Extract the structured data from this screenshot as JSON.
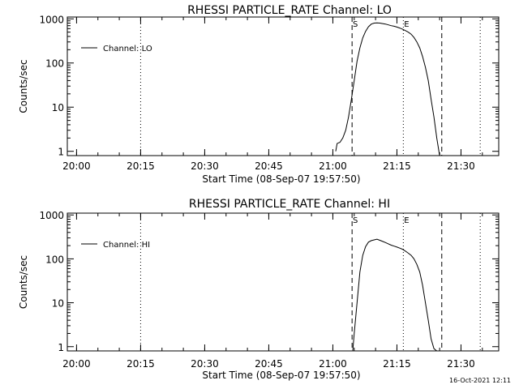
{
  "footer": {
    "timestamp": "16-Oct-2021 12:11"
  },
  "chart_data": [
    {
      "type": "line",
      "title": "RHESSI PARTICLE_RATE Channel: LO",
      "xlabel": "Start Time (08-Sep-07 19:57:50)",
      "ylabel": "Counts/sec",
      "yscale": "log",
      "ylim": [
        0.8,
        1100
      ],
      "xlim": [
        "19:57:50",
        "21:38:50"
      ],
      "x_ticks": [
        "20:00",
        "20:15",
        "20:30",
        "20:45",
        "21:00",
        "21:15",
        "21:30"
      ],
      "y_ticks": [
        "1",
        "10",
        "100",
        "1000"
      ],
      "legend": {
        "position": "top-left",
        "entries": [
          "Channel: LO"
        ]
      },
      "markers": [
        {
          "label": "S",
          "time": "21:04:30",
          "style": "dashed"
        },
        {
          "label": "E",
          "time": "21:16:30",
          "style": "dotted"
        },
        {
          "label": "",
          "time": "21:25:30",
          "style": "dashed"
        },
        {
          "label": "",
          "time": "20:15:00",
          "style": "dotted"
        },
        {
          "label": "",
          "time": "21:34:30",
          "style": "dotted"
        }
      ],
      "series": [
        {
          "name": "Channel: LO",
          "x": [
            "21:00:40",
            "21:01:00",
            "21:01:40",
            "21:02:20",
            "21:03:00",
            "21:03:40",
            "21:04:20",
            "21:05:00",
            "21:05:40",
            "21:06:20",
            "21:07:00",
            "21:07:40",
            "21:08:20",
            "21:09:00",
            "21:09:40",
            "21:10:20",
            "21:11:00",
            "21:11:40",
            "21:12:20",
            "21:13:00",
            "21:13:40",
            "21:14:20",
            "21:15:00",
            "21:15:40",
            "21:16:20",
            "21:17:00",
            "21:17:40",
            "21:18:20",
            "21:19:00",
            "21:19:40",
            "21:20:20",
            "21:21:00",
            "21:21:40",
            "21:22:20",
            "21:23:00",
            "21:23:40",
            "21:24:20",
            "21:25:00"
          ],
          "y": [
            1,
            1.5,
            1.6,
            2,
            3,
            6,
            15,
            40,
            110,
            220,
            370,
            520,
            660,
            760,
            800,
            810,
            800,
            780,
            760,
            730,
            700,
            680,
            650,
            620,
            580,
            540,
            500,
            450,
            380,
            300,
            220,
            140,
            80,
            40,
            15,
            6,
            2,
            0.8
          ]
        }
      ]
    },
    {
      "type": "line",
      "title": "RHESSI PARTICLE_RATE Channel: HI",
      "xlabel": "Start Time (08-Sep-07 19:57:50)",
      "ylabel": "Counts/sec",
      "yscale": "log",
      "ylim": [
        0.8,
        1100
      ],
      "xlim": [
        "19:57:50",
        "21:38:50"
      ],
      "x_ticks": [
        "20:00",
        "20:15",
        "20:30",
        "20:45",
        "21:00",
        "21:15",
        "21:30"
      ],
      "y_ticks": [
        "1",
        "10",
        "100",
        "1000"
      ],
      "legend": {
        "position": "top-left",
        "entries": [
          "Channel: HI"
        ]
      },
      "markers": [
        {
          "label": "S",
          "time": "21:04:30",
          "style": "dashed"
        },
        {
          "label": "E",
          "time": "21:16:30",
          "style": "dotted"
        },
        {
          "label": "",
          "time": "21:25:30",
          "style": "dashed"
        },
        {
          "label": "",
          "time": "20:15:00",
          "style": "dotted"
        },
        {
          "label": "",
          "time": "21:34:30",
          "style": "dotted"
        }
      ],
      "series": [
        {
          "name": "Channel: HI",
          "x": [
            "21:04:40",
            "21:05:00",
            "21:05:40",
            "21:06:20",
            "21:07:00",
            "21:07:40",
            "21:08:20",
            "21:09:00",
            "21:09:40",
            "21:10:20",
            "21:11:00",
            "21:11:40",
            "21:12:20",
            "21:13:00",
            "21:13:40",
            "21:14:20",
            "21:15:00",
            "21:15:40",
            "21:16:20",
            "21:17:00",
            "21:17:40",
            "21:18:20",
            "21:19:00",
            "21:19:40",
            "21:20:20",
            "21:21:00",
            "21:21:40",
            "21:22:20",
            "21:23:00",
            "21:23:40",
            "21:24:20"
          ],
          "y": [
            0.8,
            2,
            10,
            50,
            120,
            190,
            240,
            260,
            270,
            280,
            265,
            250,
            235,
            220,
            205,
            195,
            185,
            175,
            165,
            150,
            135,
            120,
            100,
            75,
            50,
            25,
            10,
            4,
            1.5,
            0.9,
            0.8
          ]
        }
      ]
    }
  ]
}
